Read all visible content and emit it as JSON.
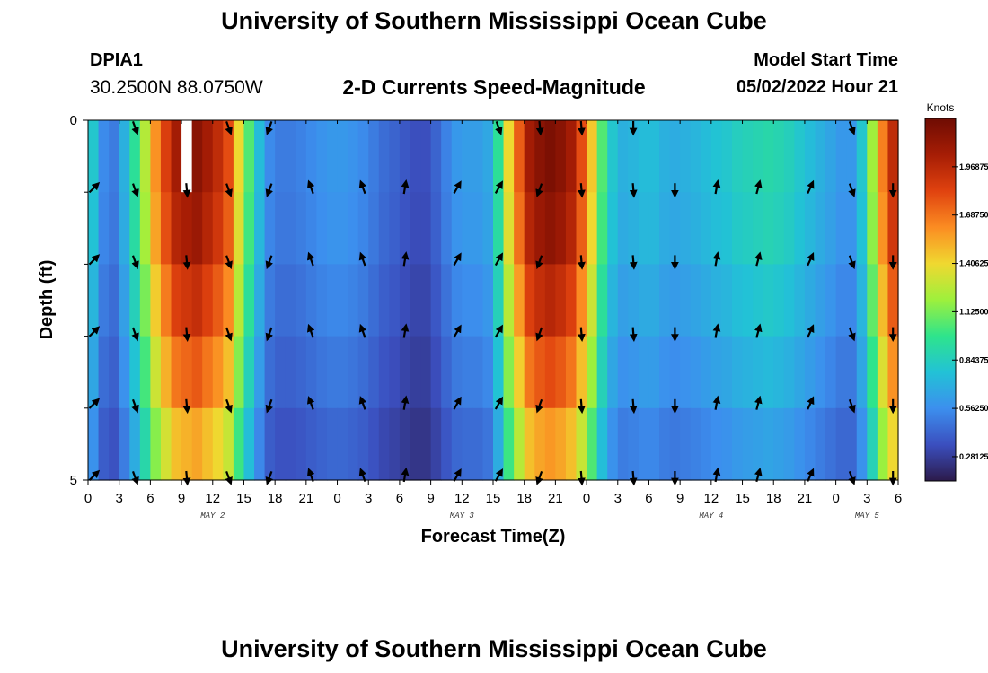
{
  "header": {
    "title": "University of Southern Mississippi Ocean Cube",
    "station": "DPIA1",
    "coords": "30.2500N  88.0750W",
    "subtitle": "2-D Currents Speed-Magnitude",
    "model_label": "Model Start Time",
    "model_time": "05/02/2022 Hour 21"
  },
  "footer": {
    "title": "University of Southern Mississippi Ocean Cube"
  },
  "colors": {
    "scale": [
      "#2c1a4a",
      "#3b4fbf",
      "#3c8fee",
      "#22c2d6",
      "#2ee48c",
      "#9ef03c",
      "#f0d830",
      "#fb8c22",
      "#e0420f",
      "#a61d05",
      "#6f0c03"
    ]
  },
  "chart_data": {
    "type": "heatmap",
    "title": "2-D Currents Speed-Magnitude",
    "xlabel": "Forecast Time(Z)",
    "ylabel": "Depth (ft)",
    "x_ticks": [
      "0",
      "3",
      "6",
      "9",
      "12",
      "15",
      "18",
      "21",
      "0",
      "3",
      "6",
      "9",
      "12",
      "15",
      "18",
      "21",
      "0",
      "3",
      "6",
      "9",
      "12",
      "15",
      "18",
      "21",
      "0",
      "3",
      "6"
    ],
    "x_range_hours": [
      0,
      78
    ],
    "day_labels": [
      {
        "label": "MAY 2",
        "hour": 12
      },
      {
        "label": "MAY 3",
        "hour": 36
      },
      {
        "label": "MAY 4",
        "hour": 60
      },
      {
        "label": "MAY 5",
        "hour": 75
      }
    ],
    "y_ticks": [
      "0",
      "5"
    ],
    "ylim": [
      0,
      5
    ],
    "depth_rows": 5,
    "time_cols": 78,
    "colorbar": {
      "unit": "Knots",
      "range": [
        0.14,
        2.25
      ],
      "labels": [
        "1.96875",
        "1.68750",
        "1.40625",
        "1.12500",
        "0.84375",
        "0.56250",
        "0.28125"
      ],
      "values": [
        1.96875,
        1.6875,
        1.40625,
        1.125,
        0.84375,
        0.5625,
        0.28125
      ]
    },
    "surface_speed_knots": [
      0.8,
      0.55,
      0.5,
      0.7,
      0.95,
      1.25,
      1.6,
      1.85,
      2.05,
      2.1,
      2.15,
      2.05,
      1.95,
      1.8,
      1.4,
      1.05,
      0.75,
      0.55,
      0.5,
      0.5,
      0.52,
      0.55,
      0.58,
      0.6,
      0.6,
      0.58,
      0.55,
      0.5,
      0.45,
      0.42,
      0.38,
      0.35,
      0.35,
      0.42,
      0.52,
      0.6,
      0.62,
      0.62,
      0.66,
      0.95,
      1.4,
      1.75,
      2.05,
      2.15,
      2.2,
      2.15,
      2.05,
      1.8,
      1.45,
      1.05,
      0.8,
      0.7,
      0.72,
      0.75,
      0.75,
      0.7,
      0.68,
      0.7,
      0.72,
      0.75,
      0.78,
      0.8,
      0.84,
      0.86,
      0.88,
      0.9,
      0.88,
      0.85,
      0.8,
      0.75,
      0.7,
      0.65,
      0.6,
      0.6,
      0.8,
      1.2,
      1.65,
      1.95
    ],
    "depth_factors": [
      1.0,
      0.97,
      0.9,
      0.82,
      0.72
    ],
    "missing_cells": [
      {
        "row": 0,
        "col": 9
      }
    ],
    "arrow_columns": [
      0,
      4,
      9,
      13,
      17,
      21,
      26,
      30,
      35,
      39,
      43,
      47,
      52,
      56,
      60,
      64,
      69,
      73,
      77
    ],
    "arrow_rows": [
      1,
      2,
      3,
      4,
      5
    ],
    "arrow_dirs_deg": [
      45,
      160,
      175,
      160,
      200,
      340,
      340,
      10,
      30,
      30,
      200,
      175,
      175,
      180,
      10,
      15,
      25,
      160,
      180
    ],
    "surface_arrows": [
      {
        "col": 4,
        "deg": 160
      },
      {
        "col": 13,
        "deg": 160
      },
      {
        "col": 17,
        "deg": 200
      },
      {
        "col": 39,
        "deg": 160
      },
      {
        "col": 43,
        "deg": 175
      },
      {
        "col": 47,
        "deg": 175
      },
      {
        "col": 52,
        "deg": 180
      },
      {
        "col": 73,
        "deg": 160
      }
    ]
  }
}
